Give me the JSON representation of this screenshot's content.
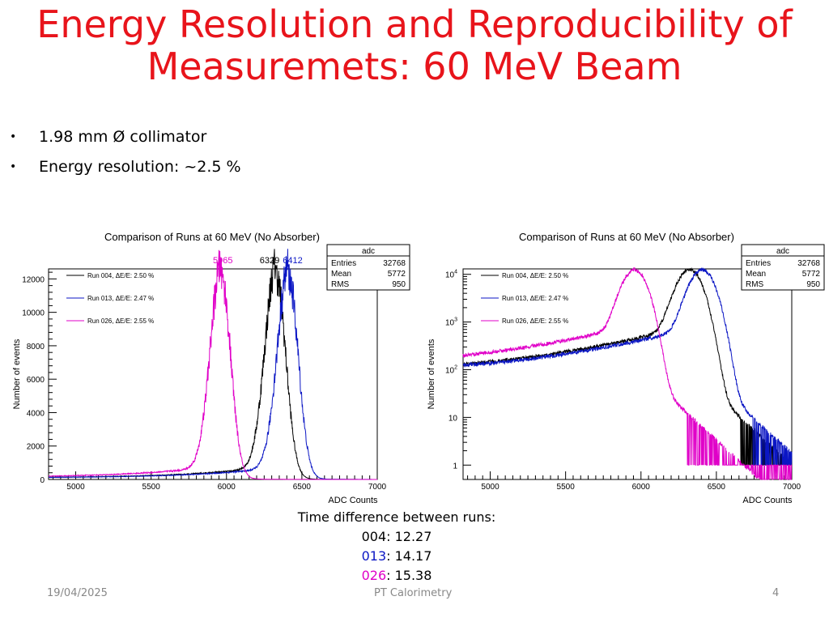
{
  "slide": {
    "title_line1": "Energy Resolution and Reproducibility of",
    "title_line2": "Measuremets: 60 MeV Beam",
    "bullets": [
      "1.98 mm Ø collimator",
      "Energy resolution: ~2.5 %"
    ],
    "notes": {
      "heading": "Time difference between runs:",
      "rows": [
        {
          "key": "004",
          "value": ": 12.27",
          "color": "#000000"
        },
        {
          "key": "013",
          "value": ": 14.17",
          "color": "#0b16c4"
        },
        {
          "key": "026",
          "value": ": 15.38",
          "color": "#e000c8"
        }
      ]
    },
    "footer": {
      "date": "19/04/2025",
      "center": "PT Calorimetry",
      "page": "4"
    }
  },
  "chart_data": [
    {
      "type": "line",
      "title": "Comparison of Runs at 60 MeV (No Absorber)",
      "xlabel": "ADC Counts",
      "ylabel": "Number of events",
      "xlim": [
        4820,
        7000
      ],
      "ylim": [
        0,
        12600
      ],
      "yscale": "linear",
      "xticks": [
        5000,
        5500,
        6000,
        6500,
        7000
      ],
      "yticks": [
        0,
        2000,
        4000,
        6000,
        8000,
        10000,
        12000
      ],
      "legend": "top-left",
      "stats": {
        "title": "adc",
        "rows": [
          [
            "Entries",
            "32768"
          ],
          [
            "Mean",
            "5772"
          ],
          [
            "RMS",
            "950"
          ]
        ]
      },
      "peak_labels": [
        {
          "x": 5965,
          "text": "5965",
          "color": "#e000c8"
        },
        {
          "x": 6329,
          "text": "6329",
          "color": "#000000"
        },
        {
          "x": 6412,
          "text": "6412",
          "color": "#0b16c4"
        }
      ],
      "series": [
        {
          "name": "Run 004, ΔE/E: 2.50 %",
          "color": "#000000",
          "peak": 6329,
          "height": 12100,
          "sigma": 68
        },
        {
          "name": "Run 013, ΔE/E: 2.47 %",
          "color": "#0b16c4",
          "peak": 6412,
          "height": 12000,
          "sigma": 68
        },
        {
          "name": "Run 026, ΔE/E: 2.55 %",
          "color": "#e000c8",
          "peak": 5965,
          "height": 12050,
          "sigma": 66
        }
      ]
    },
    {
      "type": "line",
      "title": "Comparison of Runs at 60 MeV (No Absorber)",
      "xlabel": "ADC Counts",
      "ylabel": "Number of events",
      "xlim": [
        4820,
        7000
      ],
      "ylim": [
        0.5,
        13000
      ],
      "yscale": "log",
      "xticks": [
        5000,
        5500,
        6000,
        6500,
        7000
      ],
      "yticks": [
        1,
        10,
        100,
        1000,
        10000
      ],
      "legend": "top-left",
      "stats": {
        "title": "adc",
        "rows": [
          [
            "Entries",
            "32768"
          ],
          [
            "Mean",
            "5772"
          ],
          [
            "RMS",
            "950"
          ]
        ]
      },
      "series": [
        {
          "name": "Run 004, ΔE/E: 2.50 %",
          "color": "#000000",
          "peak": 6329,
          "height": 12100,
          "sigma": 68
        },
        {
          "name": "Run 013, ΔE/E: 2.47 %",
          "color": "#0b16c4",
          "peak": 6412,
          "height": 12000,
          "sigma": 68
        },
        {
          "name": "Run 026, ΔE/E: 2.55 %",
          "color": "#e000c8",
          "peak": 5965,
          "height": 12050,
          "sigma": 66
        }
      ]
    }
  ]
}
